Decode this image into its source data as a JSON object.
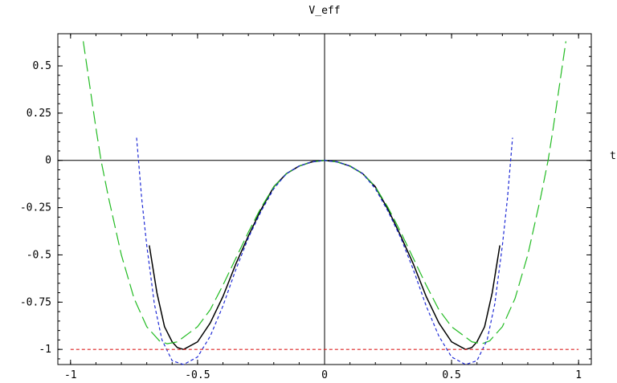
{
  "chart_data": {
    "type": "line",
    "title": "V_eff",
    "xlabel": "t",
    "ylabel": "",
    "xlim": [
      -1.05,
      1.05
    ],
    "ylim": [
      -1.08,
      0.67
    ],
    "grid": false,
    "legend": "none",
    "x_ticks": [
      {
        "value": -1,
        "label": "-1"
      },
      {
        "value": -0.5,
        "label": "-0.5"
      },
      {
        "value": 0,
        "label": "0"
      },
      {
        "value": 0.5,
        "label": "0.5"
      },
      {
        "value": 1,
        "label": "1"
      }
    ],
    "y_ticks": [
      {
        "value": 0.5,
        "label": "0.5"
      },
      {
        "value": 0.25,
        "label": "0.25"
      },
      {
        "value": 0,
        "label": "0"
      },
      {
        "value": -0.25,
        "label": "-0.25"
      },
      {
        "value": -0.5,
        "label": "-0.5"
      },
      {
        "value": -0.75,
        "label": "-0.75"
      },
      {
        "value": -1,
        "label": "-1"
      }
    ],
    "series": [
      {
        "style": "solid",
        "color": "#000000",
        "x": [
          -0.69,
          -0.66,
          -0.63,
          -0.6,
          -0.58,
          -0.555,
          -0.5,
          -0.45,
          -0.4,
          -0.35,
          -0.3,
          -0.25,
          -0.2,
          -0.15,
          -0.1,
          -0.05,
          0,
          0.05,
          0.1,
          0.15,
          0.2,
          0.25,
          0.3,
          0.35,
          0.4,
          0.45,
          0.5,
          0.555,
          0.58,
          0.6,
          0.63,
          0.66,
          0.69
        ],
        "y": [
          -0.45,
          -0.7,
          -0.88,
          -0.96,
          -0.99,
          -1.0,
          -0.96,
          -0.86,
          -0.72,
          -0.55,
          -0.4,
          -0.26,
          -0.14,
          -0.07,
          -0.03,
          -0.008,
          0,
          -0.008,
          -0.03,
          -0.07,
          -0.14,
          -0.26,
          -0.4,
          -0.55,
          -0.72,
          -0.86,
          -0.96,
          -1.0,
          -0.99,
          -0.96,
          -0.88,
          -0.7,
          -0.45
        ]
      },
      {
        "style": "dashed-long",
        "color": "#22bb22",
        "x": [
          -0.95,
          -0.9,
          -0.88,
          -0.85,
          -0.8,
          -0.75,
          -0.7,
          -0.65,
          -0.62,
          -0.58,
          -0.5,
          -0.45,
          -0.4,
          -0.35,
          -0.3,
          -0.25,
          -0.2,
          -0.15,
          -0.1,
          -0.05,
          0,
          0.05,
          0.1,
          0.15,
          0.2,
          0.25,
          0.3,
          0.35,
          0.4,
          0.45,
          0.5,
          0.58,
          0.62,
          0.65,
          0.7,
          0.75,
          0.8,
          0.85,
          0.88,
          0.9,
          0.95
        ],
        "y": [
          0.63,
          0.17,
          0.0,
          -0.2,
          -0.5,
          -0.73,
          -0.88,
          -0.955,
          -0.97,
          -0.96,
          -0.88,
          -0.79,
          -0.66,
          -0.52,
          -0.38,
          -0.25,
          -0.14,
          -0.07,
          -0.03,
          -0.008,
          0,
          -0.008,
          -0.03,
          -0.07,
          -0.14,
          -0.25,
          -0.38,
          -0.52,
          -0.66,
          -0.79,
          -0.88,
          -0.96,
          -0.97,
          -0.955,
          -0.88,
          -0.73,
          -0.5,
          -0.2,
          0.0,
          0.17,
          0.63
        ]
      },
      {
        "style": "dashed-short",
        "color": "#1f2bd6",
        "x": [
          -0.74,
          -0.72,
          -0.7,
          -0.67,
          -0.64,
          -0.6,
          -0.555,
          -0.5,
          -0.45,
          -0.4,
          -0.35,
          -0.3,
          -0.25,
          -0.2,
          -0.15,
          -0.1,
          -0.05,
          0,
          0.05,
          0.1,
          0.15,
          0.2,
          0.25,
          0.3,
          0.35,
          0.4,
          0.45,
          0.5,
          0.555,
          0.6,
          0.64,
          0.67,
          0.7,
          0.72,
          0.74
        ],
        "y": [
          0.12,
          -0.2,
          -0.45,
          -0.76,
          -0.95,
          -1.06,
          -1.08,
          -1.04,
          -0.93,
          -0.77,
          -0.58,
          -0.41,
          -0.27,
          -0.15,
          -0.07,
          -0.03,
          -0.008,
          0,
          -0.008,
          -0.03,
          -0.07,
          -0.15,
          -0.27,
          -0.41,
          -0.58,
          -0.77,
          -0.93,
          -1.04,
          -1.08,
          -1.06,
          -0.95,
          -0.76,
          -0.45,
          -0.2,
          0.12
        ]
      },
      {
        "style": "dashed-short",
        "color": "#dd2222",
        "x": [
          -1.0,
          1.0
        ],
        "y": [
          -1.0,
          -1.0
        ]
      }
    ]
  }
}
